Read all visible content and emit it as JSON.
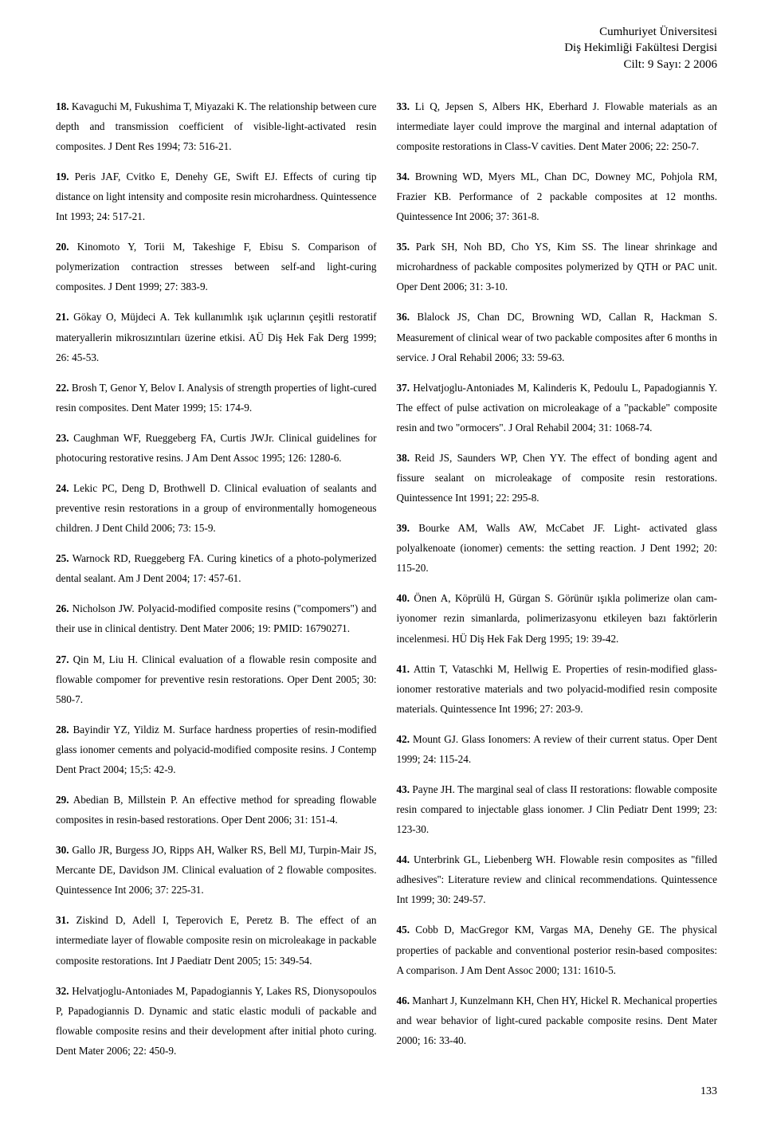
{
  "header": {
    "line1": "Cumhuriyet Üniversitesi",
    "line2": "Diş Hekimliği Fakültesi Dergisi",
    "line3": "Cilt: 9 Sayı: 2 2006"
  },
  "left": [
    {
      "n": "18.",
      "t": " Kavaguchi M, Fukushima T, Miyazaki K. The relationship between cure depth and transmission coefficient of visible-light-activated resin composites. J Dent Res 1994; 73: 516-21."
    },
    {
      "n": "19.",
      "t": " Peris JAF, Cvitko E, Denehy GE, Swift EJ. Effects of curing tip distance on light intensity and composite resin microhardness. Quintessence Int 1993; 24: 517-21."
    },
    {
      "n": "20.",
      "t": " Kinomoto Y, Torii M, Takeshige F, Ebisu S. Comparison of polymerization contraction stresses between self-and light-curing composites. J Dent 1999; 27: 383-9."
    },
    {
      "n": "21.",
      "t": " Gökay O, Müjdeci A. Tek kullanımlık ışık uçlarının çeşitli restoratif materyallerin mikrosızıntıları üzerine etkisi. AÜ Diş Hek Fak Derg 1999; 26: 45-53."
    },
    {
      "n": "22.",
      "t": " Brosh T, Genor Y, Belov I. Analysis of strength properties of light-cured resin composites. Dent Mater 1999; 15: 174-9."
    },
    {
      "n": "23.",
      "t": " Caughman WF, Rueggeberg FA, Curtis JWJr. Clinical guidelines for photocuring restorative resins. J Am Dent Assoc 1995; 126: 1280-6."
    },
    {
      "n": "24.",
      "t": " Lekic PC, Deng D, Brothwell D. Clinical evaluation of sealants and preventive resin restorations in a group of environmentally homogeneous children. J Dent Child 2006; 73: 15-9."
    },
    {
      "n": "25.",
      "t": " Warnock RD, Rueggeberg FA. Curing kinetics of a photo-polymerized dental sealant. Am J Dent 2004; 17: 457-61."
    },
    {
      "n": "26.",
      "t": " Nicholson JW. Polyacid-modified composite resins (\"compomers\") and their use in clinical dentistry. Dent Mater 2006; 19: PMID: 16790271."
    },
    {
      "n": "27.",
      "t": " Qin M, Liu H. Clinical evaluation of a flowable resin composite and flowable compomer for preventive resin restorations. Oper Dent 2005; 30: 580-7."
    },
    {
      "n": "28.",
      "t": " Bayindir YZ, Yildiz M. Surface hardness properties of resin-modified glass ionomer cements and polyacid-modified composite resins. J Contemp Dent Pract 2004; 15;5: 42-9."
    },
    {
      "n": "29.",
      "t": " Abedian B, Millstein P. An effective method for spreading flowable composites in resin-based restorations. Oper Dent 2006; 31: 151-4."
    },
    {
      "n": "30.",
      "t": " Gallo JR, Burgess JO, Ripps AH, Walker RS, Bell MJ, Turpin-Mair JS, Mercante DE, Davidson JM. Clinical evaluation of 2 flowable composites. Quintessence Int 2006; 37: 225-31."
    },
    {
      "n": "31.",
      "t": " Ziskind D, Adell I, Teperovich E, Peretz B. The effect of an intermediate layer of flowable composite resin on microleakage in packable composite restorations. Int J Paediatr Dent 2005; 15: 349-54."
    },
    {
      "n": "32.",
      "t": " Helvatjoglu-Antoniades M, Papadogiannis Y, Lakes RS, Dionysopoulos P, Papadogiannis D. Dynamic and static elastic moduli of packable and flowable composite resins and their development after initial photo curing. Dent Mater 2006; 22: 450-9."
    }
  ],
  "right": [
    {
      "n": "33.",
      "t": " Li Q, Jepsen S, Albers HK, Eberhard J. Flowable materials as an intermediate layer could improve the marginal and internal adaptation of composite restorations in Class-V cavities. Dent Mater 2006; 22: 250-7."
    },
    {
      "n": "34.",
      "t": " Browning WD, Myers ML, Chan DC, Downey MC, Pohjola RM, Frazier KB. Performance of 2 packable composites at 12 months. Quintessence Int 2006; 37: 361-8."
    },
    {
      "n": "35.",
      "t": " Park SH, Noh BD, Cho YS, Kim SS. The linear shrinkage and microhardness of packable composites polymerized by QTH or PAC unit. Oper Dent 2006; 31: 3-10."
    },
    {
      "n": "36.",
      "t": " Blalock JS, Chan DC, Browning WD, Callan R, Hackman S. Measurement of clinical wear of two packable composites after 6 months in service. J Oral Rehabil 2006; 33: 59-63."
    },
    {
      "n": "37.",
      "t": " Helvatjoglu-Antoniades M, Kalinderis K, Pedoulu L, Papadogiannis Y. The effect of pulse activation on microleakage of a \"packable\" composite resin and two \"ormocers\". J Oral Rehabil 2004; 31: 1068-74."
    },
    {
      "n": "38.",
      "t": " Reid JS, Saunders WP, Chen YY. The effect of bonding agent and fissure sealant on microleakage of composite resin restorations. Quintessence Int 1991; 22: 295-8."
    },
    {
      "n": "39.",
      "t": " Bourke AM, Walls AW, McCabet JF. Light- activated glass polyalkenoate (ionomer) cements: the setting reaction. J Dent 1992; 20: 115-20."
    },
    {
      "n": "40.",
      "t": " Önen A, Köprülü H, Gürgan S. Görünür ışıkla polimerize olan cam-iyonomer rezin simanlarda, polimerizasyonu etkileyen bazı faktörlerin incelenmesi. HÜ Diş Hek Fak Derg 1995; 19: 39-42."
    },
    {
      "n": "41.",
      "t": " Attin T, Vataschki M, Hellwig E. Properties of resin-modified glass-ionomer restorative materials and two polyacid-modified resin composite materials. Quintessence Int 1996; 27: 203-9."
    },
    {
      "n": "42.",
      "t": " Mount GJ. Glass Ionomers: A review of their current status. Oper Dent 1999; 24: 115-24."
    },
    {
      "n": "43.",
      "t": " Payne JH. The marginal seal of class II restorations: flowable composite resin compared to injectable glass ionomer. J Clin Pediatr Dent 1999; 23: 123-30."
    },
    {
      "n": "44.",
      "t": " Unterbrink GL, Liebenberg WH. Flowable resin composites as ''filled adhesives'': Literature review and clinical recommendations. Quintessence Int 1999; 30: 249-57."
    },
    {
      "n": "45.",
      "t": " Cobb D, MacGregor KM, Vargas MA, Denehy GE. The physical properties of packable and conventional posterior resin-based composites: A comparison. J Am Dent Assoc 2000; 131: 1610-5."
    },
    {
      "n": "46.",
      "t": " Manhart J, Kunzelmann KH, Chen HY, Hickel R. Mechanical properties and wear behavior of light-cured packable composite resins. Dent Mater 2000; 16: 33-40."
    }
  ],
  "pageNumber": "133"
}
